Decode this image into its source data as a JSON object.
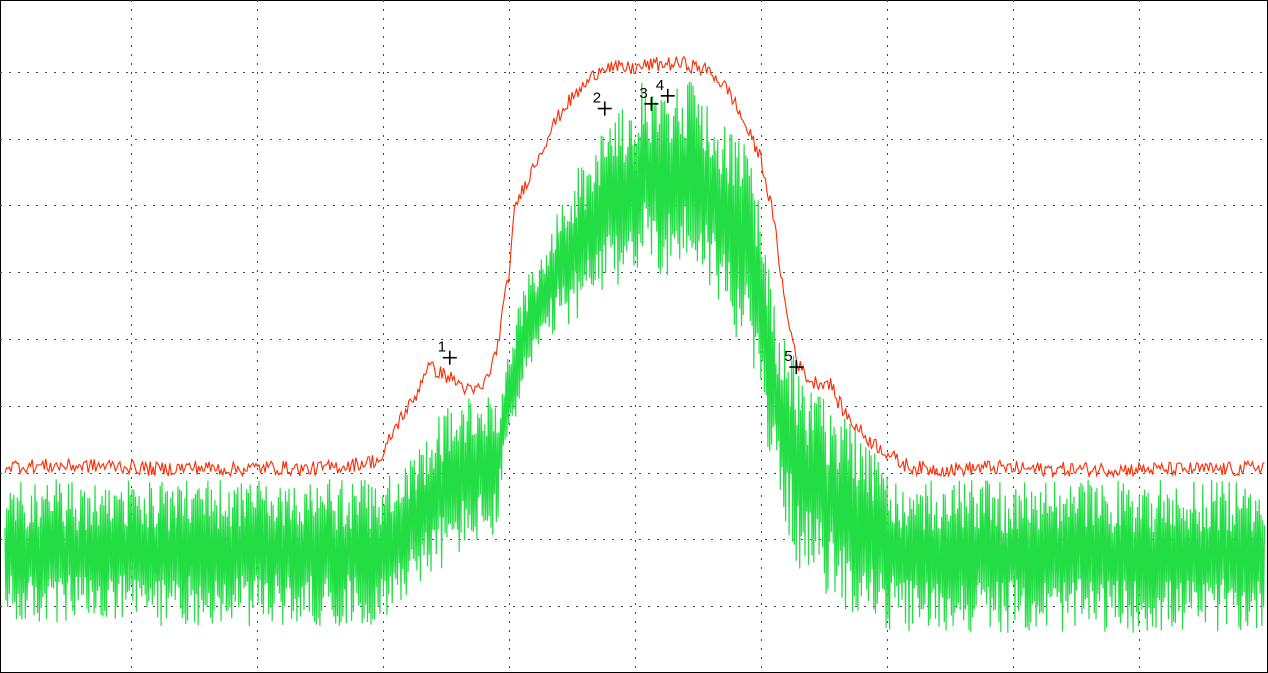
{
  "chart_data": {
    "type": "line",
    "title": "",
    "xlabel": "",
    "ylabel": "",
    "xlim": [
      0,
      10
    ],
    "ylim": [
      0,
      10
    ],
    "grid": true,
    "grid_style": "dotted",
    "x_divisions": 10,
    "y_divisions": 10,
    "series": [
      {
        "kind": "average-trace",
        "color": "#ff2a00",
        "x": [
          0,
          0.3,
          0.6,
          0.9,
          1.2,
          1.5,
          1.8,
          2.1,
          2.4,
          2.7,
          3.0,
          3.05,
          3.15,
          3.25,
          3.35,
          3.45,
          3.55,
          3.63,
          3.7,
          3.8,
          3.9,
          4.0,
          4.05,
          4.1,
          4.15,
          4.25,
          4.35,
          4.45,
          4.55,
          4.65,
          4.75,
          4.85,
          5.0,
          5.1,
          5.25,
          5.4,
          5.6,
          5.75,
          5.85,
          6.0,
          6.1,
          6.2,
          6.3,
          6.4,
          6.55,
          6.6,
          6.7,
          6.85,
          7.0,
          7.1,
          7.2,
          7.35,
          7.55,
          7.8,
          8.2,
          8.6,
          9.0,
          9.4,
          9.8,
          10.0
        ],
        "y": [
          3.1,
          3.1,
          3.1,
          3.1,
          3.05,
          3.08,
          3.05,
          3.08,
          3.05,
          3.1,
          3.2,
          3.5,
          3.85,
          4.1,
          4.6,
          4.5,
          4.4,
          4.3,
          4.2,
          4.3,
          4.8,
          6.0,
          7.0,
          7.2,
          7.4,
          7.8,
          8.2,
          8.5,
          8.7,
          8.9,
          9.1,
          9.05,
          9.05,
          9.1,
          9.12,
          9.12,
          9.0,
          8.7,
          8.3,
          7.7,
          6.8,
          5.4,
          4.6,
          4.35,
          4.35,
          4.1,
          3.8,
          3.5,
          3.3,
          3.15,
          3.08,
          3.05,
          3.05,
          3.08,
          3.05,
          3.05,
          3.05,
          3.05,
          3.05,
          3.1
        ]
      },
      {
        "kind": "live-trace",
        "color": "#22dd44",
        "x": [
          0,
          3.0,
          3.1,
          3.25,
          3.45,
          3.7,
          3.9,
          4.0,
          4.15,
          4.35,
          4.55,
          4.75,
          4.95,
          5.1,
          5.25,
          5.45,
          5.6,
          5.75,
          5.9,
          6.0,
          6.1,
          6.3,
          6.45,
          6.6,
          6.8,
          7.0,
          7.2,
          10.0
        ],
        "upper": [
          2.9,
          2.9,
          3.1,
          3.3,
          4.0,
          4.2,
          4.1,
          5.0,
          6.0,
          6.9,
          7.6,
          8.1,
          8.7,
          8.95,
          8.9,
          8.95,
          8.8,
          8.4,
          7.8,
          6.9,
          5.6,
          4.6,
          4.3,
          4.0,
          3.6,
          3.1,
          2.9,
          2.9
        ],
        "lower": [
          0.7,
          0.7,
          1.0,
          1.3,
          1.5,
          1.9,
          2.0,
          3.5,
          4.4,
          5.0,
          5.3,
          5.6,
          5.9,
          6.1,
          5.9,
          6.1,
          5.7,
          5.2,
          4.7,
          3.9,
          2.9,
          1.5,
          1.3,
          1.0,
          0.8,
          0.6,
          0.6,
          0.6
        ]
      }
    ],
    "markers": [
      {
        "label": "1",
        "x": 3.53,
        "y": 4.72
      },
      {
        "label": "2",
        "x": 4.76,
        "y": 8.45
      },
      {
        "label": "3",
        "x": 5.13,
        "y": 8.52
      },
      {
        "label": "4",
        "x": 5.26,
        "y": 8.64
      },
      {
        "label": "5",
        "x": 6.28,
        "y": 4.58
      }
    ]
  }
}
